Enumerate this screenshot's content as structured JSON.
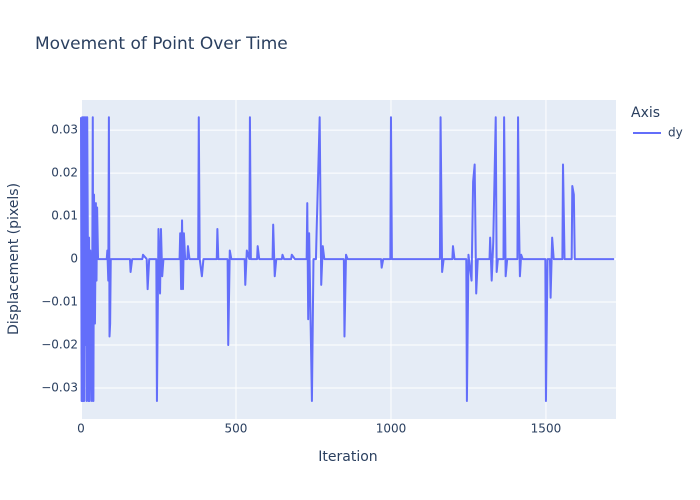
{
  "chart_data": {
    "type": "line",
    "title": "Movement of Point Over Time",
    "x_label": "Iteration",
    "y_label": "Displacement (pixels)",
    "legend_title": "Axis",
    "legend_position": "right",
    "grid": true,
    "xlim": [
      0,
      1726
    ],
    "ylim": [
      -0.0372,
      0.037
    ],
    "xticks": [
      0,
      500,
      1000,
      1500
    ],
    "yticks": [
      {
        "value": -0.03,
        "label": "−0.03"
      },
      {
        "value": -0.02,
        "label": "−0.02"
      },
      {
        "value": -0.01,
        "label": "−0.01"
      },
      0,
      0.01,
      0.02,
      0.03
    ],
    "x": [
      0,
      2,
      4,
      6,
      8,
      10,
      12,
      14,
      16,
      18,
      20,
      22,
      24,
      26,
      28,
      30,
      35,
      38,
      40,
      42,
      45,
      48,
      50,
      52,
      55,
      60,
      83,
      85,
      88,
      90,
      92,
      94,
      96,
      158,
      160,
      165,
      198,
      200,
      212,
      215,
      220,
      243,
      245,
      250,
      255,
      258,
      262,
      266,
      318,
      320,
      323,
      326,
      329,
      332,
      336,
      343,
      345,
      350,
      378,
      380,
      383,
      390,
      395,
      438,
      440,
      443,
      473,
      475,
      480,
      485,
      528,
      530,
      535,
      543,
      545,
      548,
      568,
      570,
      575,
      618,
      620,
      625,
      630,
      648,
      650,
      655,
      678,
      680,
      690,
      728,
      730,
      733,
      736,
      745,
      750,
      758,
      760,
      770,
      775,
      780,
      785,
      848,
      850,
      855,
      860,
      968,
      970,
      975,
      998,
      1000,
      1003,
      1158,
      1160,
      1165,
      1170,
      1198,
      1200,
      1205,
      1243,
      1245,
      1250,
      1260,
      1265,
      1270,
      1275,
      1280,
      1318,
      1320,
      1325,
      1330,
      1338,
      1341,
      1345,
      1363,
      1365,
      1370,
      1375,
      1408,
      1410,
      1413,
      1416,
      1420,
      1425,
      1498,
      1500,
      1505,
      1513,
      1515,
      1520,
      1525,
      1553,
      1555,
      1560,
      1583,
      1585,
      1590,
      1593,
      1720
    ],
    "series": [
      {
        "name": "dy",
        "color": "#636efa",
        "values": [
          0.033,
          -0.033,
          0.033,
          -0.033,
          0.033,
          -0.033,
          0.033,
          -0.02,
          0.033,
          -0.033,
          0.033,
          0.005,
          -0.033,
          0.005,
          -0.033,
          0.002,
          -0.033,
          0.033,
          -0.033,
          0.015,
          -0.015,
          0.013,
          -0.005,
          0.012,
          0,
          0,
          0,
          0.002,
          -0.005,
          0.033,
          -0.018,
          -0.015,
          0,
          0,
          -0.003,
          0,
          0,
          0.001,
          0,
          -0.007,
          0,
          0,
          -0.033,
          0.007,
          -0.008,
          0.007,
          -0.004,
          0,
          0,
          0.006,
          -0.007,
          0.009,
          -0.007,
          0.006,
          0,
          0,
          0.003,
          0,
          0,
          0.033,
          0,
          -0.004,
          0,
          0,
          0.007,
          0,
          0,
          -0.02,
          0.002,
          0,
          0,
          -0.006,
          0.002,
          0,
          0.033,
          0,
          0,
          0.003,
          0,
          0,
          0.008,
          -0.004,
          0,
          0,
          0.001,
          0,
          0,
          0.001,
          0,
          0,
          0.013,
          -0.014,
          0.006,
          -0.033,
          0,
          0,
          0.006,
          0.033,
          -0.006,
          0.003,
          0,
          0,
          -0.018,
          0.001,
          0,
          0,
          -0.002,
          0,
          0,
          0.033,
          0,
          0,
          0.033,
          -0.003,
          0,
          0,
          0.003,
          0,
          0,
          -0.033,
          0.001,
          -0.005,
          0.018,
          0.022,
          -0.008,
          0,
          0,
          0.005,
          -0.005,
          0.004,
          0.033,
          -0.003,
          0,
          0,
          0.033,
          -0.004,
          0,
          0,
          0.033,
          0.009,
          -0.004,
          0.001,
          0,
          0,
          -0.033,
          0,
          0,
          -0.009,
          0.005,
          0,
          0,
          0.022,
          0,
          0,
          0.017,
          0.015,
          0,
          0
        ]
      }
    ]
  }
}
